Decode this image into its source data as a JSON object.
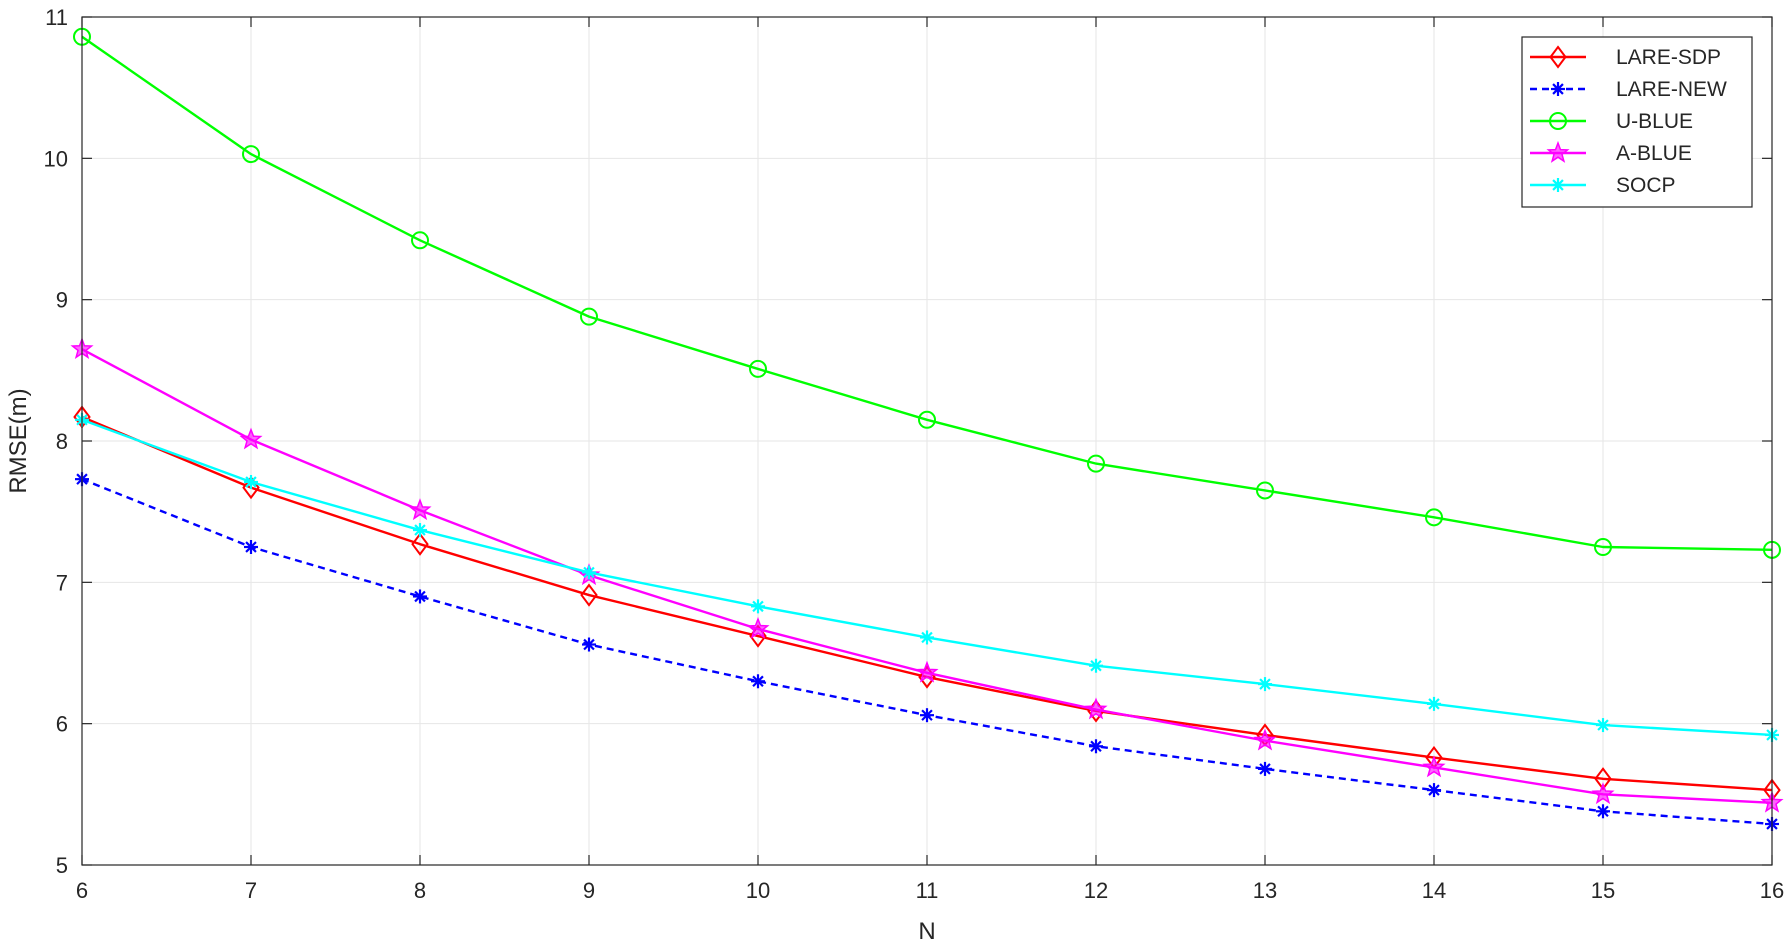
{
  "chart_data": {
    "type": "line",
    "title": "",
    "xlabel": "N",
    "ylabel": "RMSE(m)",
    "xlim": [
      6,
      16
    ],
    "ylim": [
      5,
      11
    ],
    "xticks": [
      6,
      7,
      8,
      9,
      10,
      11,
      12,
      13,
      14,
      15,
      16
    ],
    "yticks": [
      5,
      6,
      7,
      8,
      9,
      10,
      11
    ],
    "grid": true,
    "legend_position": "top-right",
    "x": [
      6,
      7,
      8,
      9,
      10,
      11,
      12,
      13,
      14,
      15,
      16
    ],
    "series": [
      {
        "name": "LARE-SDP",
        "color": "#ff0000",
        "marker": "diamond",
        "line_style": "solid",
        "values": [
          8.17,
          7.67,
          7.27,
          6.91,
          6.62,
          6.33,
          6.09,
          5.92,
          5.76,
          5.61,
          5.53
        ]
      },
      {
        "name": "LARE-NEW",
        "color": "#0000ff",
        "marker": "asterisk",
        "line_style": "dashed",
        "values": [
          7.73,
          7.25,
          6.9,
          6.56,
          6.3,
          6.06,
          5.84,
          5.68,
          5.53,
          5.38,
          5.29
        ]
      },
      {
        "name": "U-BLUE",
        "color": "#00ff00",
        "marker": "circle",
        "line_style": "solid",
        "values": [
          10.86,
          10.03,
          9.42,
          8.88,
          8.51,
          8.15,
          7.84,
          7.65,
          7.46,
          7.25,
          7.23
        ]
      },
      {
        "name": "A-BLUE",
        "color": "#ff00ff",
        "marker": "star",
        "line_style": "solid",
        "values": [
          8.65,
          8.01,
          7.51,
          7.05,
          6.67,
          6.36,
          6.1,
          5.88,
          5.69,
          5.5,
          5.44
        ]
      },
      {
        "name": "SOCP",
        "color": "#00ffff",
        "marker": "asterisk",
        "line_style": "solid",
        "values": [
          8.15,
          7.71,
          7.37,
          7.07,
          6.83,
          6.61,
          6.41,
          6.28,
          6.14,
          5.99,
          5.92
        ]
      }
    ]
  }
}
